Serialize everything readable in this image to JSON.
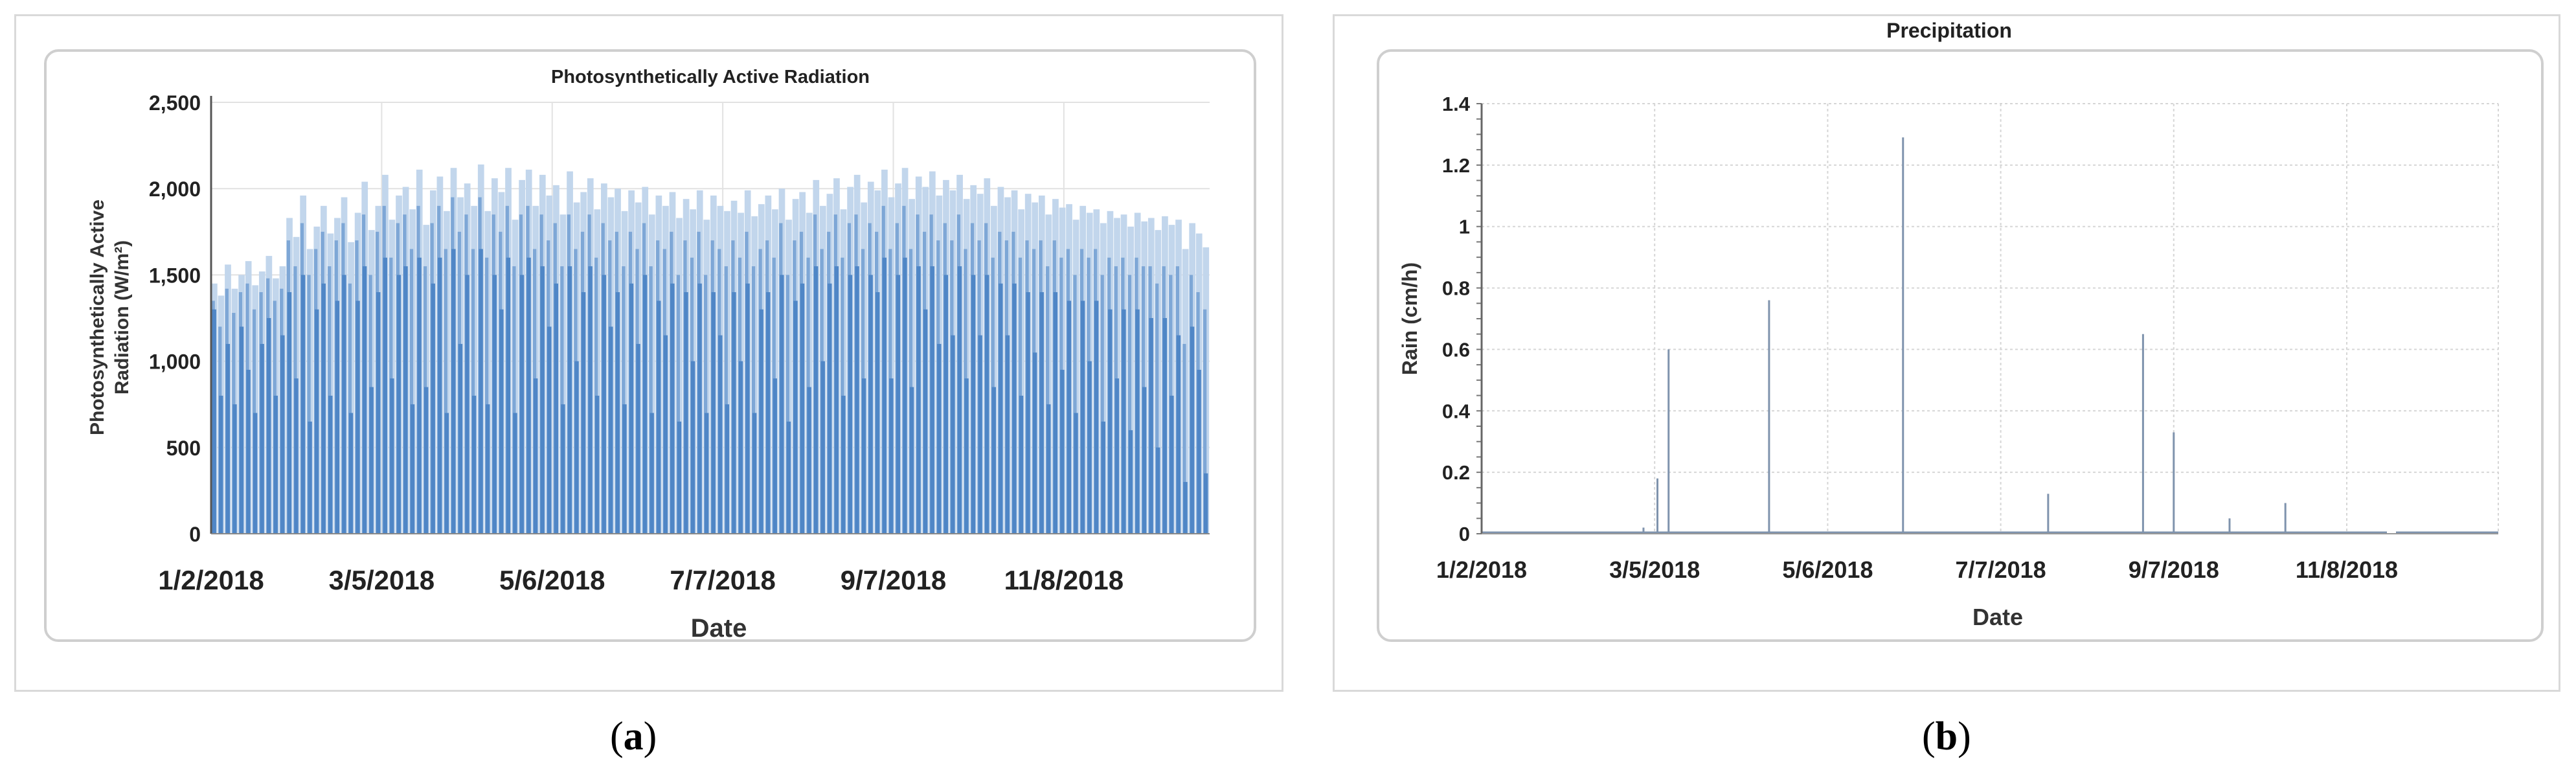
{
  "chart_data": [
    {
      "type": "bar",
      "title": "Photosynthetically Active Radiation",
      "xlabel": "Date",
      "ylabel": "Photosynthetically Active Radiation (W/m²)",
      "ylabel_lines": [
        "Photosynthetically Active",
        "Radiation (W/m²)"
      ],
      "x_tick_labels": [
        "1/2/2018",
        "3/5/2018",
        "5/6/2018",
        "7/7/2018",
        "9/7/2018",
        "11/8/2018"
      ],
      "y_tick_labels": [
        "0",
        "500",
        "1,000",
        "1,500",
        "2,000",
        "2,500"
      ],
      "ylim": [
        0,
        2500
      ],
      "xlim": [
        "2018-01-02",
        "2018-12-31"
      ],
      "grid": true,
      "color": "#4f86c6",
      "color_light": "#c2d6ec",
      "series": [
        {
          "values_note_free": true,
          "daily_peak": [
            1450,
            1380,
            1560,
            1420,
            1500,
            1580,
            1440,
            1520,
            1610,
            1480,
            1550,
            1830,
            1720,
            1960,
            1650,
            1780,
            1900,
            1740,
            1830,
            1950,
            1690,
            1860,
            2040,
            1760,
            1900,
            2080,
            1820,
            1960,
            2010,
            1880,
            2110,
            1790,
            1990,
            2070,
            1870,
            2120,
            1950,
            2030,
            1900,
            2140,
            1870,
            2060,
            1980,
            2120,
            1820,
            2050,
            2110,
            1900,
            2080,
            1960,
            2020,
            1850,
            2100,
            1920,
            1980,
            2060,
            1880,
            2030,
            1950,
            2000,
            1870,
            1990,
            1920,
            2010,
            1850,
            1960,
            1900,
            1980,
            1830,
            1940,
            1880,
            1990,
            1820,
            1960,
            1900,
            1870,
            1930,
            1860,
            1990,
            1840,
            1910,
            1960,
            1880,
            2000,
            1820,
            1940,
            1980,
            1860,
            2050,
            1900,
            1970,
            2060,
            1880,
            2010,
            2080,
            1920,
            2040,
            1990,
            2110,
            1950,
            2030,
            2120,
            1940,
            2070,
            2010,
            2100,
            1960,
            2050,
            1990,
            2080,
            1940,
            2020,
            1970,
            2060,
            1900,
            2010,
            1950,
            1990,
            1880,
            1970,
            1920,
            1960,
            1850,
            1940,
            1890,
            1910,
            1820,
            1900,
            1860,
            1880,
            1800,
            1870,
            1830,
            1850,
            1780,
            1860,
            1810,
            1830,
            1760,
            1840,
            1790,
            1820,
            1650,
            1800,
            1740,
            1660
          ],
          "daily_mid": [
            1350,
            1200,
            1420,
            1280,
            1400,
            1450,
            1300,
            1400,
            1480,
            1350,
            1420,
            1700,
            1550,
            1800,
            1500,
            1650,
            1750,
            1550,
            1700,
            1800,
            1450,
            1700,
            1850,
            1500,
            1750,
            1900,
            1600,
            1800,
            1850,
            1650,
            1900,
            1550,
            1800,
            1900,
            1650,
            1950,
            1750,
            1850,
            1650,
            1950,
            1600,
            1850,
            1750,
            1900,
            1550,
            1850,
            1900,
            1650,
            1850,
            1700,
            1800,
            1550,
            1850,
            1650,
            1750,
            1850,
            1600,
            1800,
            1700,
            1750,
            1550,
            1750,
            1650,
            1800,
            1550,
            1700,
            1650,
            1750,
            1500,
            1700,
            1600,
            1750,
            1500,
            1700,
            1650,
            1550,
            1700,
            1600,
            1750,
            1550,
            1650,
            1700,
            1600,
            1800,
            1500,
            1700,
            1750,
            1600,
            1850,
            1650,
            1750,
            1850,
            1600,
            1800,
            1850,
            1650,
            1800,
            1750,
            1900,
            1650,
            1800,
            1900,
            1650,
            1850,
            1750,
            1850,
            1700,
            1800,
            1700,
            1850,
            1650,
            1800,
            1700,
            1800,
            1600,
            1750,
            1700,
            1750,
            1600,
            1700,
            1650,
            1700,
            1550,
            1700,
            1600,
            1650,
            1500,
            1650,
            1600,
            1650,
            1500,
            1600,
            1550,
            1600,
            1500,
            1600,
            1550,
            1550,
            1450,
            1550,
            1500,
            1550,
            1100,
            1500,
            1400,
            1300
          ],
          "daily_low": [
            1300,
            800,
            1100,
            750,
            1200,
            950,
            700,
            1100,
            1250,
            800,
            1150,
            1400,
            900,
            1500,
            650,
            1300,
            1450,
            800,
            1350,
            1500,
            700,
            1350,
            1550,
            850,
            1400,
            1600,
            900,
            1500,
            1550,
            750,
            1600,
            850,
            1450,
            1600,
            700,
            1650,
            1100,
            1500,
            800,
            1650,
            750,
            1500,
            1300,
            1600,
            700,
            1500,
            1600,
            900,
            1550,
            1200,
            1450,
            750,
            1550,
            1000,
            1400,
            1550,
            800,
            1500,
            1200,
            1400,
            750,
            1450,
            1100,
            1500,
            700,
            1350,
            1150,
            1450,
            650,
            1400,
            1000,
            1450,
            700,
            1400,
            1150,
            750,
            1400,
            1000,
            1450,
            700,
            1300,
            1400,
            900,
            1500,
            650,
            1350,
            1450,
            850,
            1550,
            1000,
            1450,
            1550,
            800,
            1500,
            1550,
            900,
            1500,
            1400,
            1600,
            900,
            1500,
            1600,
            850,
            1550,
            1300,
            1550,
            1100,
            1500,
            1150,
            1550,
            900,
            1500,
            1150,
            1500,
            850,
            1450,
            1150,
            1450,
            800,
            1400,
            1050,
            1400,
            750,
            1400,
            950,
            1350,
            700,
            1350,
            1000,
            1350,
            650,
            1300,
            900,
            1300,
            600,
            1300,
            850,
            1250,
            500,
            1250,
            800,
            1150,
            300,
            1200,
            950,
            350
          ]
        }
      ]
    },
    {
      "type": "bar",
      "title": "Precipitation",
      "xlabel": "Date",
      "ylabel": "Rain (cm/h)",
      "x_tick_labels": [
        "1/2/2018",
        "3/5/2018",
        "5/6/2018",
        "7/7/2018",
        "9/7/2018",
        "11/8/2018"
      ],
      "y_tick_labels": [
        "0",
        "0.2",
        "0.4",
        "0.6",
        "0.8",
        "1",
        "1.2",
        "1.4"
      ],
      "ylim": [
        0,
        1.4
      ],
      "xlim": [
        "2018-01-02",
        "2018-12-31"
      ],
      "grid": true,
      "color": "#7f93ad",
      "series": [
        {
          "x": [
            "2018-03-01",
            "2018-03-06",
            "2018-03-10",
            "2018-04-15",
            "2018-06-02",
            "2018-07-24",
            "2018-08-27",
            "2018-09-07",
            "2018-09-27",
            "2018-10-17"
          ],
          "values": [
            0.02,
            0.18,
            0.6,
            0.76,
            1.29,
            0.13,
            0.65,
            0.33,
            0.05,
            0.1
          ]
        }
      ]
    }
  ],
  "captions": {
    "a": {
      "open": "(",
      "letter": "a",
      "close": ")"
    },
    "b": {
      "open": "(",
      "letter": "b",
      "close": ")"
    }
  }
}
